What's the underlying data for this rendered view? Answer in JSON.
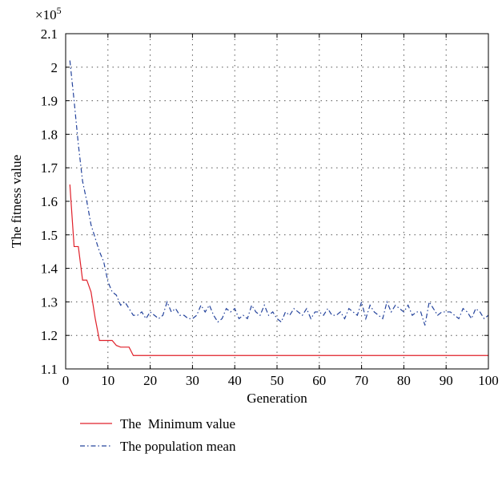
{
  "chart_data": {
    "type": "line",
    "xlabel": "Generation",
    "ylabel": "The fitness value",
    "y_multiplier": "×10",
    "y_multiplier_exp": "5",
    "xlim": [
      0,
      100
    ],
    "ylim": [
      1.1,
      2.1
    ],
    "xticks": [
      0,
      10,
      20,
      30,
      40,
      50,
      60,
      70,
      80,
      90,
      100
    ],
    "yticks": [
      1.1,
      1.2,
      1.3,
      1.4,
      1.5,
      1.6,
      1.7,
      1.8,
      1.9,
      2,
      2.1
    ],
    "xtick_labels": [
      "0",
      "10",
      "20",
      "30",
      "40",
      "50",
      "60",
      "70",
      "80",
      "90",
      "100"
    ],
    "ytick_labels": [
      "1.1",
      "1.2",
      "1.3",
      "1.4",
      "1.5",
      "1.6",
      "1.7",
      "1.8",
      "1.9",
      "2",
      "2.1"
    ],
    "grid": true,
    "legend_position": "bottom-left-outside",
    "series": [
      {
        "name": "The  Minimum value",
        "color": "#e0202a",
        "style": "solid",
        "x": [
          1,
          2,
          3,
          4,
          5,
          6,
          7,
          8,
          9,
          10,
          11,
          12,
          13,
          14,
          15,
          16,
          17,
          18,
          19,
          20,
          100
        ],
        "y": [
          1.65,
          1.465,
          1.465,
          1.365,
          1.365,
          1.33,
          1.25,
          1.185,
          1.185,
          1.185,
          1.185,
          1.17,
          1.165,
          1.165,
          1.165,
          1.14,
          1.14,
          1.14,
          1.14,
          1.14,
          1.14
        ]
      },
      {
        "name": "The population mean",
        "color": "#24439c",
        "style": "dashdot",
        "x": [
          1,
          2,
          3,
          4,
          5,
          6,
          7,
          8,
          9,
          10,
          11,
          12,
          13,
          14,
          15,
          16,
          17,
          18,
          19,
          20,
          21,
          22,
          23,
          24,
          25,
          26,
          27,
          28,
          29,
          30,
          31,
          32,
          33,
          34,
          35,
          36,
          37,
          38,
          39,
          40,
          41,
          42,
          43,
          44,
          45,
          46,
          47,
          48,
          49,
          50,
          51,
          52,
          53,
          54,
          55,
          56,
          57,
          58,
          59,
          60,
          61,
          62,
          63,
          64,
          65,
          66,
          67,
          68,
          69,
          70,
          71,
          72,
          73,
          74,
          75,
          76,
          77,
          78,
          79,
          80,
          81,
          82,
          83,
          84,
          85,
          86,
          87,
          88,
          89,
          90,
          91,
          92,
          93,
          94,
          95,
          96,
          97,
          98,
          99,
          100
        ],
        "y": [
          2.02,
          1.9,
          1.77,
          1.66,
          1.6,
          1.53,
          1.49,
          1.45,
          1.42,
          1.36,
          1.33,
          1.32,
          1.29,
          1.3,
          1.28,
          1.26,
          1.26,
          1.27,
          1.25,
          1.27,
          1.26,
          1.25,
          1.26,
          1.3,
          1.27,
          1.28,
          1.26,
          1.26,
          1.25,
          1.25,
          1.26,
          1.29,
          1.27,
          1.29,
          1.26,
          1.24,
          1.25,
          1.28,
          1.27,
          1.28,
          1.25,
          1.26,
          1.25,
          1.29,
          1.27,
          1.26,
          1.29,
          1.26,
          1.27,
          1.25,
          1.24,
          1.27,
          1.26,
          1.28,
          1.27,
          1.26,
          1.28,
          1.25,
          1.27,
          1.27,
          1.26,
          1.28,
          1.26,
          1.26,
          1.27,
          1.25,
          1.28,
          1.27,
          1.26,
          1.3,
          1.25,
          1.29,
          1.27,
          1.26,
          1.25,
          1.3,
          1.27,
          1.29,
          1.28,
          1.27,
          1.29,
          1.26,
          1.27,
          1.27,
          1.23,
          1.3,
          1.28,
          1.26,
          1.27,
          1.27,
          1.27,
          1.26,
          1.25,
          1.28,
          1.27,
          1.25,
          1.28,
          1.27,
          1.25,
          1.26
        ]
      }
    ]
  }
}
